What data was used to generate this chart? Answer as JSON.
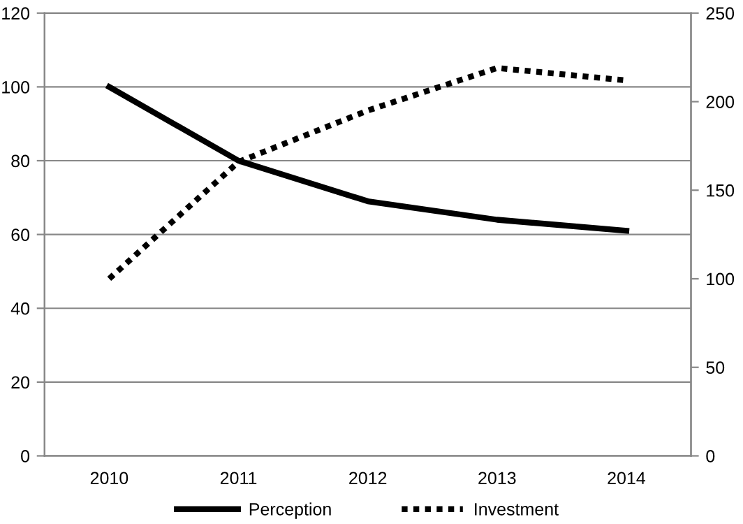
{
  "chart_data": {
    "type": "line",
    "categories": [
      "2010",
      "2011",
      "2012",
      "2013",
      "2014"
    ],
    "series": [
      {
        "name": "Perception",
        "color": "#000000",
        "line_style": "solid",
        "values": [
          100,
          80,
          69,
          64,
          61
        ]
      },
      {
        "name": "Investment",
        "color": "#000000",
        "line_style": "dotted",
        "axis": "y2",
        "values": [
          100,
          166,
          195,
          219,
          212
        ]
      }
    ],
    "ylim": [
      0,
      120
    ],
    "yticks": [
      0,
      20,
      40,
      60,
      80,
      100,
      120
    ],
    "y2lim": [
      0,
      250
    ],
    "y2ticks": [
      0,
      50,
      100,
      150,
      200,
      250
    ],
    "grid": "y",
    "legend": "bottom",
    "marker": "none"
  }
}
